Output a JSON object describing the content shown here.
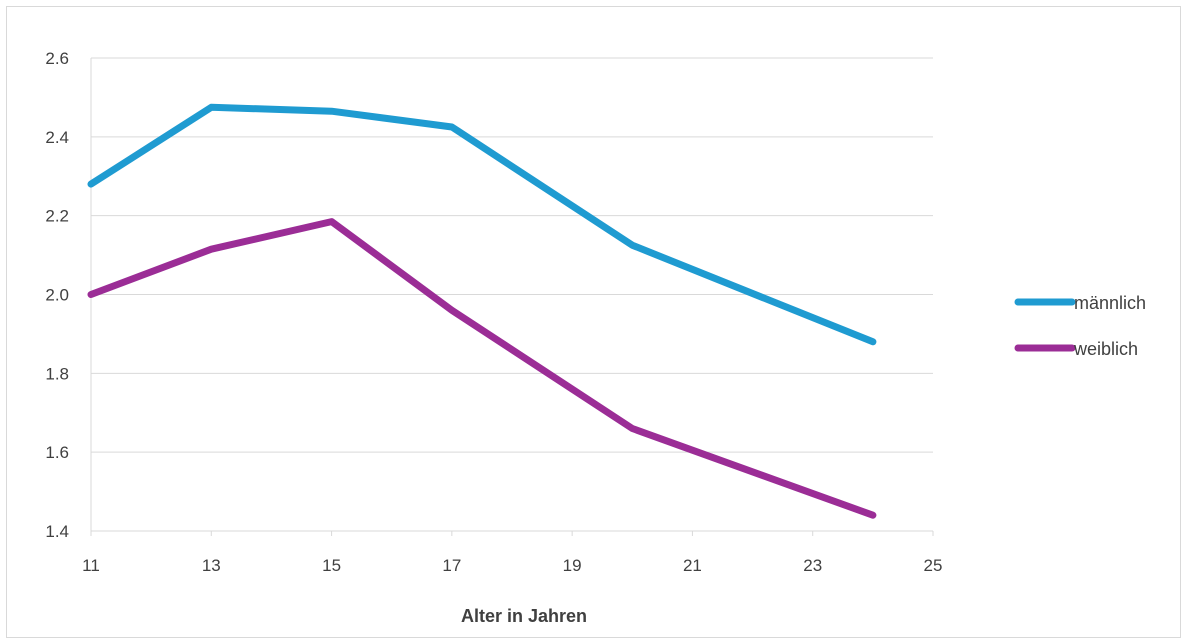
{
  "chart_data": {
    "type": "line",
    "xlabel": "Alter in Jahren",
    "ylabel": "",
    "xlim": [
      11,
      25
    ],
    "ylim": [
      1.4,
      2.6
    ],
    "x_ticks": [
      "11",
      "13",
      "15",
      "17",
      "19",
      "21",
      "23",
      "25"
    ],
    "y_ticks": [
      "1.4",
      "1.6",
      "1.8",
      "2.0",
      "2.2",
      "2.4",
      "2.6"
    ],
    "grid": "horizontal",
    "legend_position": "right",
    "series": [
      {
        "name": "männlich",
        "color": "#1f9bd1",
        "x": [
          11,
          13,
          15,
          17,
          20,
          24
        ],
        "y": [
          2.28,
          2.475,
          2.465,
          2.425,
          2.125,
          1.88
        ]
      },
      {
        "name": "weiblich",
        "color": "#9b2d96",
        "x": [
          11,
          13,
          15,
          17,
          20,
          24
        ],
        "y": [
          2.0,
          2.115,
          2.185,
          1.96,
          1.66,
          1.44
        ]
      }
    ]
  }
}
